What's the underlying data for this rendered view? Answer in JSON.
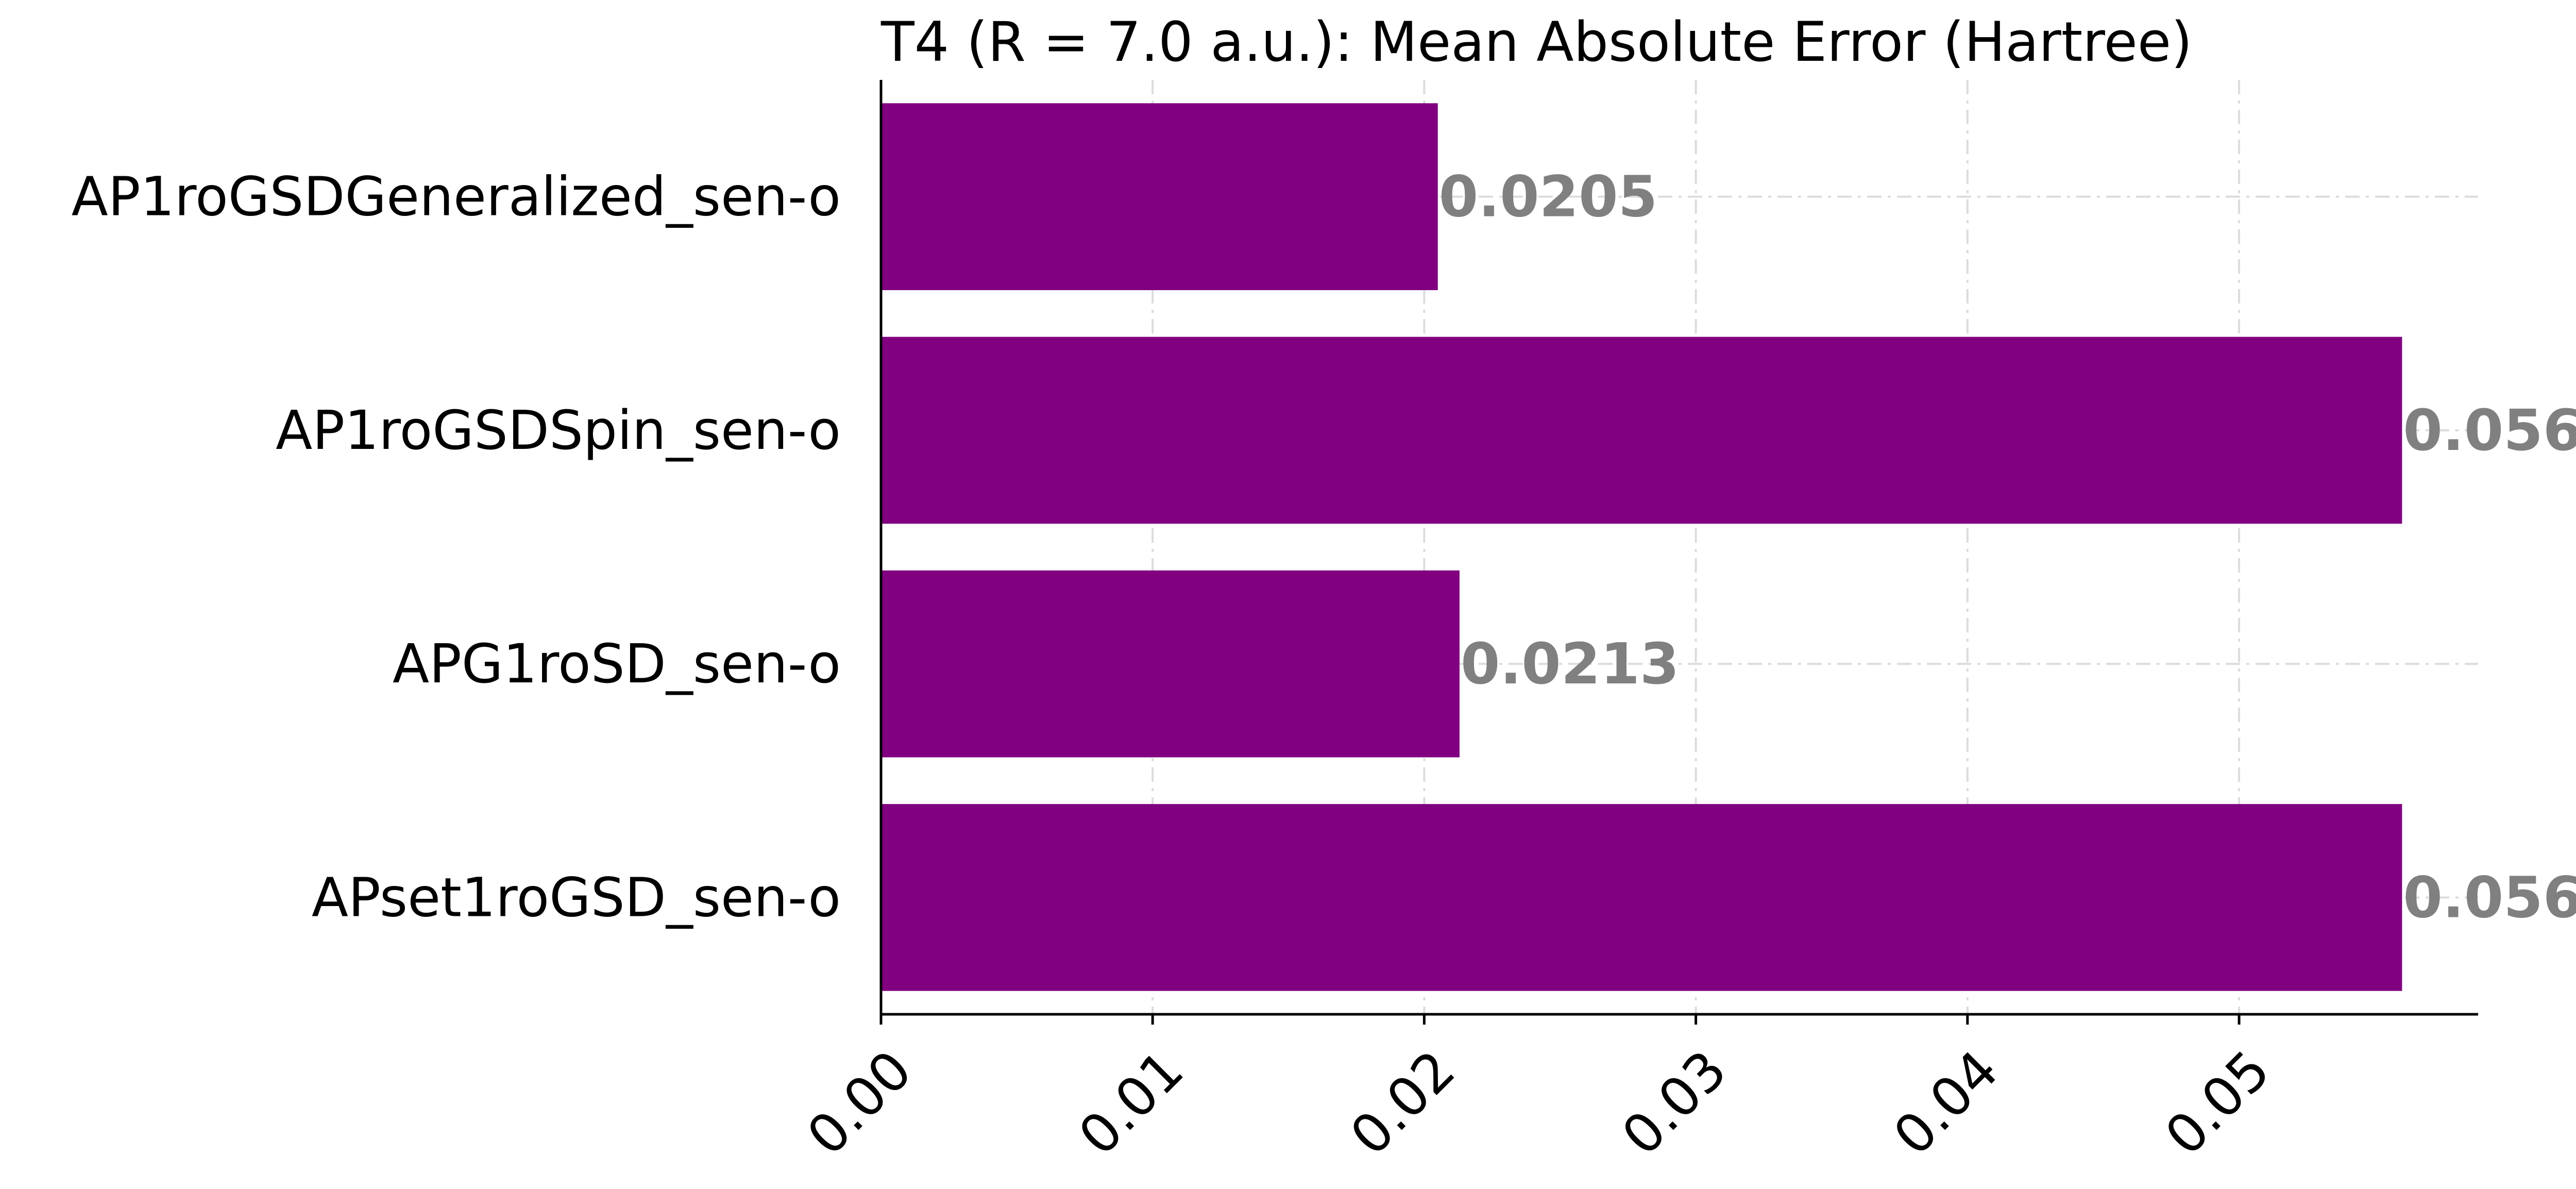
{
  "chart_data": {
    "type": "bar",
    "orientation": "horizontal",
    "title": "T4 (R = 7.0 a.u.): Mean Absolute Error (Hartree)",
    "categories": [
      "AP1roGSDGeneralized_sen-o",
      "AP1roGSDSpin_sen-o",
      "APG1roSD_sen-o",
      "APset1roGSD_sen-o"
    ],
    "values": [
      0.0205,
      0.056,
      0.0213,
      0.056
    ],
    "value_labels": [
      "0.0205",
      "0.056",
      "0.0213",
      "0.056"
    ],
    "x_ticks": [
      "0.00",
      "0.01",
      "0.02",
      "0.03",
      "0.04",
      "0.05"
    ],
    "x_tick_values": [
      0.0,
      0.01,
      0.02,
      0.03,
      0.04,
      0.05
    ],
    "xlim": [
      0,
      0.0588
    ],
    "xlabel": "",
    "ylabel": "",
    "grid": true,
    "legend": "none",
    "bar_color": "#800080",
    "value_label_color": "#808080"
  }
}
